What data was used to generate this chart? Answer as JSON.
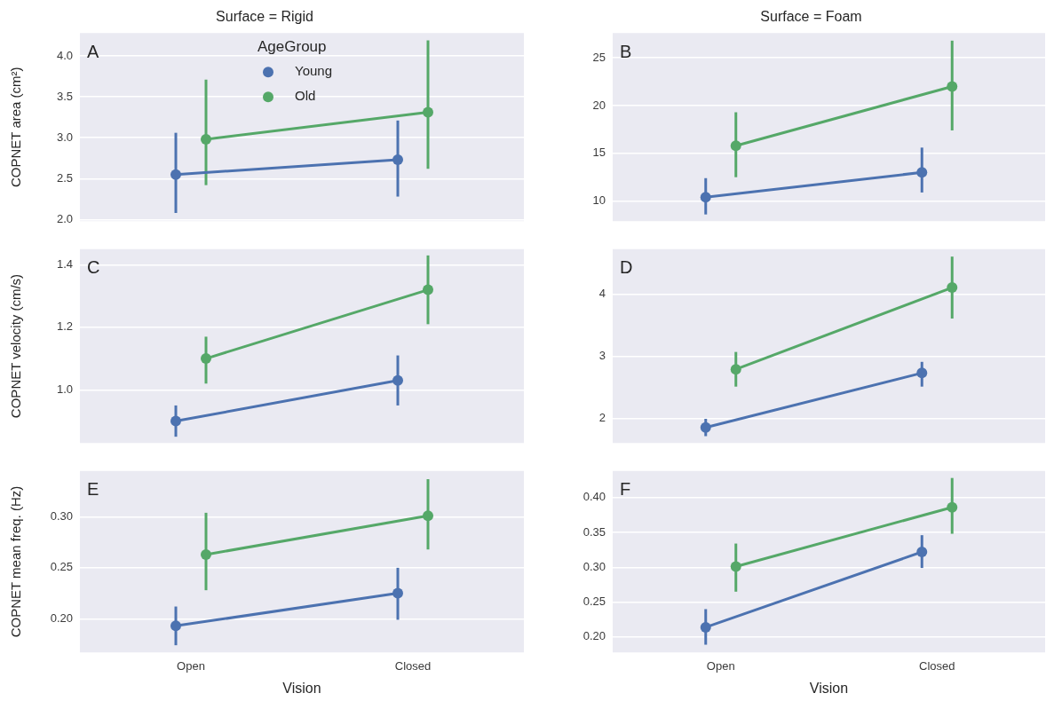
{
  "chart_data": [
    {
      "type": "line",
      "title": "Surface = Rigid",
      "ylabel": "COPNET area (cm²)",
      "annotations": [
        "A"
      ],
      "categories": [
        null,
        null
      ],
      "legend": "top",
      "legend_title": "AgeGroup",
      "marker": "circle",
      "line_style": "solid",
      "grid": "y",
      "tick_labels": "y",
      "ylim": [
        1.98,
        4.28
      ],
      "yticks": [
        {
          "value": 2,
          "label": "2.0"
        },
        {
          "value": 2.5,
          "label": "2.5"
        },
        {
          "value": 3,
          "label": "3.0"
        },
        {
          "value": 3.5,
          "label": "3.5"
        },
        {
          "value": 4,
          "label": "4.0"
        }
      ],
      "series": [
        {
          "name": "Young",
          "color": "#4c72b0",
          "values": [
            2.55,
            2.73
          ],
          "errors": [
            [
              2.08,
              3.06
            ],
            [
              2.28,
              3.21
            ]
          ]
        },
        {
          "name": "Old",
          "color": "#55a868",
          "values": [
            2.98,
            3.31
          ],
          "errors": [
            [
              2.42,
              3.71
            ],
            [
              2.62,
              4.19
            ]
          ]
        }
      ]
    },
    {
      "type": "line",
      "title": "Surface = Foam",
      "annotations": [
        "B"
      ],
      "categories": [
        null,
        null
      ],
      "marker": "circle",
      "line_style": "solid",
      "grid": "y",
      "tick_labels": "y",
      "ylim": [
        7.9,
        27.6
      ],
      "yticks": [
        10,
        15,
        20,
        25
      ],
      "series": [
        {
          "color": "#4c72b0",
          "values": [
            10.4,
            13.0
          ],
          "errors": [
            [
              8.6,
              12.4
            ],
            [
              10.9,
              15.6
            ]
          ]
        },
        {
          "color": "#55a868",
          "values": [
            15.8,
            22.0
          ],
          "errors": [
            [
              12.5,
              19.3
            ],
            [
              17.4,
              26.8
            ]
          ]
        }
      ]
    },
    {
      "type": "line",
      "ylabel": "COPNET velocity (cm/s)",
      "annotations": [
        "C"
      ],
      "categories": [
        null,
        null
      ],
      "marker": "circle",
      "line_style": "solid",
      "grid": "y",
      "tick_labels": "y",
      "ylim": [
        0.83,
        1.45
      ],
      "yticks": [
        {
          "value": 1,
          "label": "1.0"
        },
        {
          "value": 1.2,
          "label": "1.2"
        },
        {
          "value": 1.4,
          "label": "1.4"
        }
      ],
      "series": [
        {
          "color": "#4c72b0",
          "values": [
            0.9,
            1.03
          ],
          "errors": [
            [
              0.85,
              0.95
            ],
            [
              0.95,
              1.11
            ]
          ]
        },
        {
          "color": "#55a868",
          "values": [
            1.1,
            1.32
          ],
          "errors": [
            [
              1.02,
              1.17
            ],
            [
              1.21,
              1.43
            ]
          ]
        }
      ]
    },
    {
      "type": "line",
      "annotations": [
        "D"
      ],
      "categories": [
        null,
        null
      ],
      "marker": "circle",
      "line_style": "solid",
      "grid": "y",
      "tick_labels": "y",
      "ylim": [
        1.6,
        4.73
      ],
      "yticks": [
        2,
        3,
        4
      ],
      "series": [
        {
          "color": "#4c72b0",
          "values": [
            1.85,
            2.73
          ],
          "errors": [
            [
              1.71,
              1.99
            ],
            [
              2.51,
              2.91
            ]
          ]
        },
        {
          "color": "#55a868",
          "values": [
            2.79,
            4.11
          ],
          "errors": [
            [
              2.51,
              3.07
            ],
            [
              3.61,
              4.61
            ]
          ]
        }
      ]
    },
    {
      "type": "line",
      "xlabel": "Vision",
      "ylabel": "COPNET mean freq. (Hz)",
      "annotations": [
        "E"
      ],
      "categories": [
        "Open",
        "Closed"
      ],
      "marker": "circle",
      "line_style": "solid",
      "grid": "y",
      "ylim": [
        0.167,
        0.345
      ],
      "yticks": [
        {
          "value": 0.2,
          "label": "0.20"
        },
        {
          "value": 0.25,
          "label": "0.25"
        },
        {
          "value": 0.3,
          "label": "0.30"
        }
      ],
      "series": [
        {
          "color": "#4c72b0",
          "values": [
            0.193,
            0.225
          ],
          "errors": [
            [
              0.174,
              0.212
            ],
            [
              0.199,
              0.25
            ]
          ]
        },
        {
          "color": "#55a868",
          "values": [
            0.263,
            0.301
          ],
          "errors": [
            [
              0.228,
              0.304
            ],
            [
              0.268,
              0.337
            ]
          ]
        }
      ]
    },
    {
      "type": "line",
      "xlabel": "Vision",
      "annotations": [
        "F"
      ],
      "categories": [
        "Open",
        "Closed"
      ],
      "marker": "circle",
      "line_style": "solid",
      "grid": "y",
      "ylim": [
        0.178,
        0.438
      ],
      "yticks": [
        {
          "value": 0.2,
          "label": "0.20"
        },
        {
          "value": 0.25,
          "label": "0.25"
        },
        {
          "value": 0.3,
          "label": "0.30"
        },
        {
          "value": 0.35,
          "label": "0.35"
        },
        {
          "value": 0.4,
          "label": "0.40"
        }
      ],
      "series": [
        {
          "color": "#4c72b0",
          "values": [
            0.214,
            0.322
          ],
          "errors": [
            [
              0.189,
              0.24
            ],
            [
              0.299,
              0.346
            ]
          ]
        },
        {
          "color": "#55a868",
          "values": [
            0.301,
            0.386
          ],
          "errors": [
            [
              0.265,
              0.334
            ],
            [
              0.348,
              0.428
            ]
          ]
        }
      ]
    }
  ]
}
